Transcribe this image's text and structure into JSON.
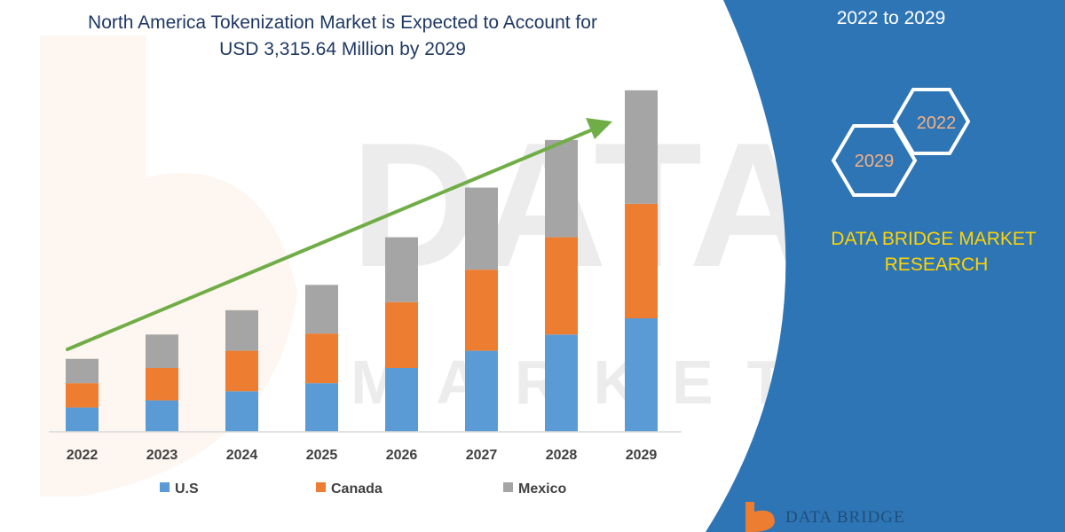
{
  "title_lines": [
    "North America Tokenization Market is Expected to Account for",
    "USD 3,315.64 Million by 2029"
  ],
  "panel": {
    "period": "2022 to 2029",
    "hex_small": "2022",
    "hex_large": "2029",
    "brand_lines": [
      "DATA BRIDGE MARKET",
      "RESEARCH"
    ],
    "logo_text": "DATA BRIDGE",
    "bg_color": "#2e75b6",
    "brand_color": "#ffd400"
  },
  "watermark": {
    "top": "DATABRIDGE",
    "bottom": "MARKETRESEARCH"
  },
  "chart_data": {
    "type": "bar",
    "stacked": true,
    "categories": [
      "2022",
      "2023",
      "2024",
      "2025",
      "2026",
      "2027",
      "2028",
      "2029"
    ],
    "series": [
      {
        "name": "U.S",
        "color": "#5b9bd5",
        "values": [
          24,
          31,
          40,
          48,
          63,
          80,
          96,
          112
        ]
      },
      {
        "name": "Canada",
        "color": "#ed7d31",
        "values": [
          24,
          32,
          40,
          49,
          65,
          80,
          96,
          113
        ]
      },
      {
        "name": "Mexico",
        "color": "#a5a5a5",
        "values": [
          24,
          33,
          40,
          48,
          64,
          81,
          96,
          112
        ]
      }
    ],
    "ylim": [
      0,
      350
    ],
    "trend_arrow": true,
    "grid": false,
    "legend_position": "bottom",
    "arrow_color": "#70ad47"
  }
}
